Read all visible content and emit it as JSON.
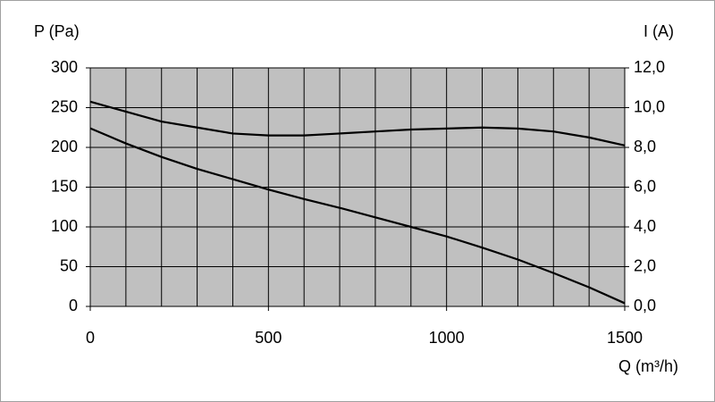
{
  "chart_data": {
    "type": "line",
    "ylabel": "P (Pa)",
    "y2label": "I (A)",
    "xlabel": "Q (m³/h)",
    "x": [
      0,
      100,
      200,
      300,
      400,
      500,
      600,
      700,
      800,
      900,
      1000,
      1100,
      1200,
      1300,
      1400,
      1500
    ],
    "series": [
      {
        "color": "#000000",
        "values": [
          224,
          205,
          188,
          173,
          160,
          147,
          135,
          124,
          112,
          100,
          88,
          74,
          59,
          42,
          24,
          4
        ]
      },
      {
        "color": "#000000",
        "axis": "y2",
        "values": [
          10.3,
          9.8,
          9.3,
          9.0,
          8.7,
          8.6,
          8.6,
          8.7,
          8.8,
          8.9,
          8.95,
          9.0,
          8.95,
          8.8,
          8.5,
          8.1
        ]
      }
    ],
    "xlim": [
      0,
      1500
    ],
    "xticks": [
      0,
      500,
      1000,
      1500
    ],
    "xgrid": [
      0,
      100,
      200,
      300,
      400,
      500,
      600,
      700,
      800,
      900,
      1000,
      1100,
      1200,
      1300,
      1400,
      1500
    ],
    "ylim": [
      0,
      300
    ],
    "yticks": [
      0,
      50,
      100,
      150,
      200,
      250,
      300
    ],
    "y2lim": [
      0,
      12
    ],
    "y2ticks": [
      {
        "value": 0,
        "label": "0,0"
      },
      {
        "value": 2,
        "label": "2,0"
      },
      {
        "value": 4,
        "label": "4,0"
      },
      {
        "value": 6,
        "label": "6,0"
      },
      {
        "value": 8,
        "label": "8,0"
      },
      {
        "value": 10,
        "label": "10,0"
      },
      {
        "value": 12,
        "label": "12,0"
      }
    ],
    "grid": true,
    "plot_background": "#c0c0c0"
  }
}
